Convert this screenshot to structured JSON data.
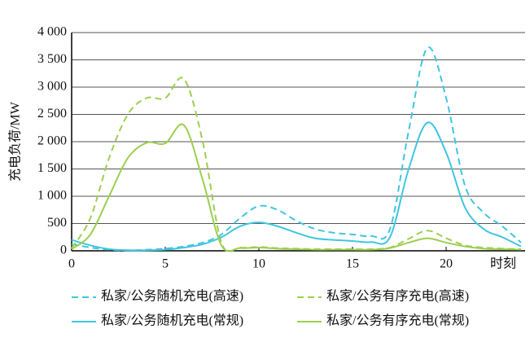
{
  "chart_data": {
    "type": "line",
    "y_label": "充电负荷/MW",
    "x_label": "时刻",
    "x": [
      0,
      1,
      2,
      3,
      4,
      5,
      6,
      7,
      8,
      9,
      10,
      11,
      12,
      13,
      14,
      15,
      16,
      17,
      18,
      19,
      20,
      21,
      22,
      23,
      24
    ],
    "xlim": [
      0,
      24
    ],
    "xticks": [
      0,
      5,
      10,
      15,
      20
    ],
    "ylim": [
      0,
      4000
    ],
    "yticks": [
      0,
      500,
      {
        "value": 1000,
        "label": "1 000"
      },
      {
        "value": 1500,
        "label": "1 500"
      },
      {
        "value": 2000,
        "label": "2 000"
      },
      {
        "value": 2500,
        "label": "2 500"
      },
      {
        "value": 3000,
        "label": "3 000"
      },
      {
        "value": 3500,
        "label": "3 500"
      },
      {
        "value": 4000,
        "label": "4 000"
      }
    ],
    "grid": true,
    "series": [
      {
        "name": "私家/公务随机充电(高速)",
        "color": "#3fc6e0",
        "style": "dashed",
        "values": [
          120,
          60,
          20,
          10,
          20,
          40,
          80,
          150,
          300,
          600,
          820,
          750,
          550,
          400,
          330,
          300,
          270,
          400,
          2200,
          3720,
          2800,
          1200,
          700,
          450,
          150
        ]
      },
      {
        "name": "私家/公务有序充电(高速)",
        "color": "#9ccf4f",
        "style": "dashed",
        "values": [
          50,
          600,
          1700,
          2500,
          2800,
          2800,
          3150,
          2000,
          150,
          60,
          70,
          50,
          40,
          30,
          30,
          30,
          30,
          60,
          220,
          370,
          230,
          100,
          60,
          40,
          30
        ]
      },
      {
        "name": "私家/公务随机充电(常规)",
        "color": "#3fc6e0",
        "style": "solid",
        "values": [
          200,
          100,
          30,
          10,
          10,
          20,
          60,
          120,
          250,
          450,
          520,
          450,
          330,
          230,
          200,
          180,
          160,
          250,
          1500,
          2350,
          1800,
          800,
          400,
          250,
          80
        ]
      },
      {
        "name": "私家/公务有序充电(常规)",
        "color": "#9ccf4f",
        "style": "solid",
        "values": [
          30,
          300,
          1000,
          1700,
          1980,
          1970,
          2300,
          1300,
          100,
          50,
          60,
          40,
          30,
          20,
          20,
          20,
          20,
          50,
          150,
          230,
          150,
          80,
          40,
          30,
          20
        ]
      }
    ]
  }
}
